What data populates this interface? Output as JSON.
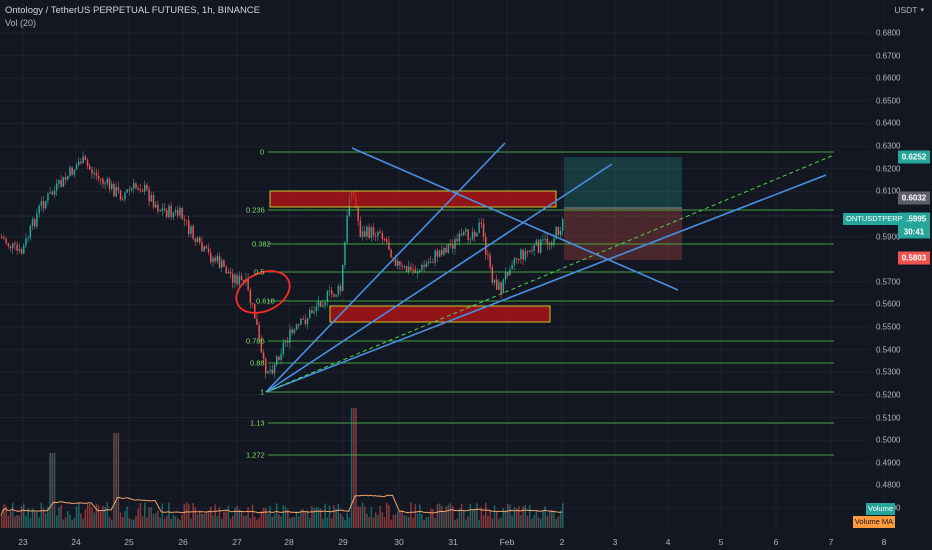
{
  "header": {
    "title": "Ontology / TetherUS PERPETUAL FUTURES, 1h, BINANCE",
    "indicator": "Vol (20)",
    "currency": "USDT"
  },
  "price_axis": [
    "0.6800",
    "0.6700",
    "0.6600",
    "0.6500",
    "0.6400",
    "0.6300",
    "0.6200",
    "0.6100",
    "0.5900",
    "0.5700",
    "0.5600",
    "0.5500",
    "0.5400",
    "0.5300",
    "0.5200",
    "0.5100",
    "0.5000",
    "0.4900",
    "0.4800",
    "0.4700"
  ],
  "time_axis": [
    "23",
    "24",
    "25",
    "26",
    "27",
    "28",
    "29",
    "30",
    "31",
    "Feb",
    "2",
    "3",
    "4",
    "5",
    "6",
    "7",
    "8"
  ],
  "fib_levels": [
    "0",
    "0.236",
    "0.382",
    "0.5",
    "0.618",
    "0.786",
    "0.88",
    "1",
    "1.13",
    "1.272"
  ],
  "price_badges": {
    "target": "0.6252",
    "entry": "0.6032",
    "last": "0.5995",
    "countdown": "30:41",
    "stop": "0.5803"
  },
  "symbol_badge": "ONTUSDTPERP",
  "volume_labels": {
    "volume": "Volume",
    "volume_ma": "Volume MA"
  },
  "colors": {
    "up": "#26a69a",
    "down": "#ef5350",
    "fib": "#52d14a",
    "trendline": "#4a90e2",
    "background": "#131722"
  }
}
